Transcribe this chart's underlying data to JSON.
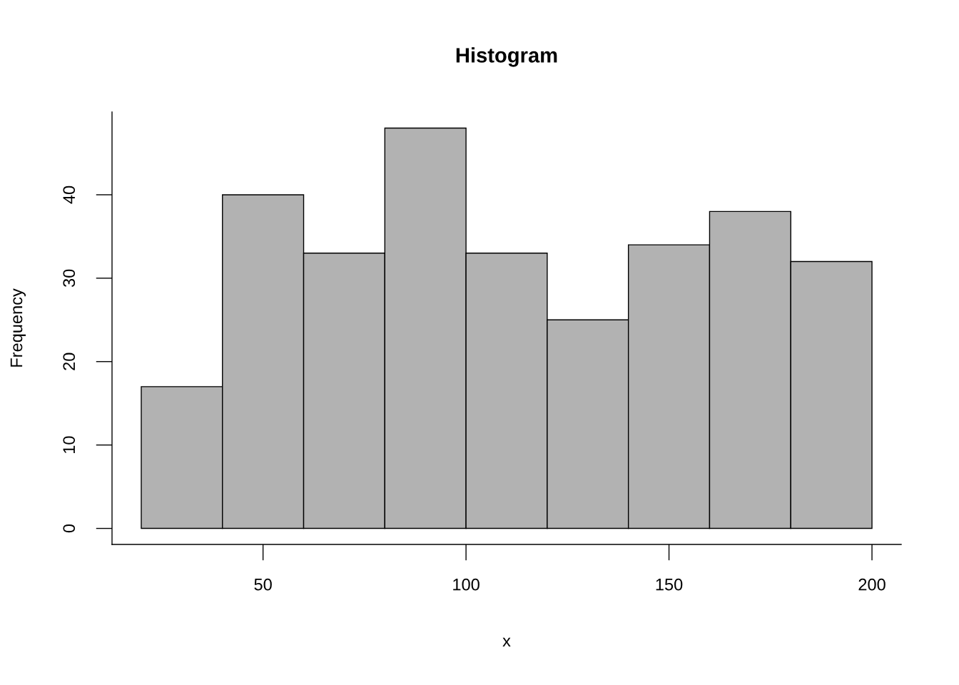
{
  "chart_data": {
    "type": "histogram",
    "title": "Histogram",
    "xlabel": "x",
    "ylabel": "Frequency",
    "bins": [
      20,
      40,
      60,
      80,
      100,
      120,
      140,
      160,
      180,
      200
    ],
    "values": [
      17,
      40,
      33,
      48,
      33,
      25,
      34,
      38,
      32
    ],
    "color": "#b2b2b2",
    "xlim": [
      12.8,
      207.2
    ],
    "ylim": [
      -1.92,
      49.92
    ],
    "xticks": [
      50,
      100,
      150,
      200
    ],
    "yticks": [
      0,
      10,
      20,
      30,
      40
    ],
    "grid": false
  }
}
